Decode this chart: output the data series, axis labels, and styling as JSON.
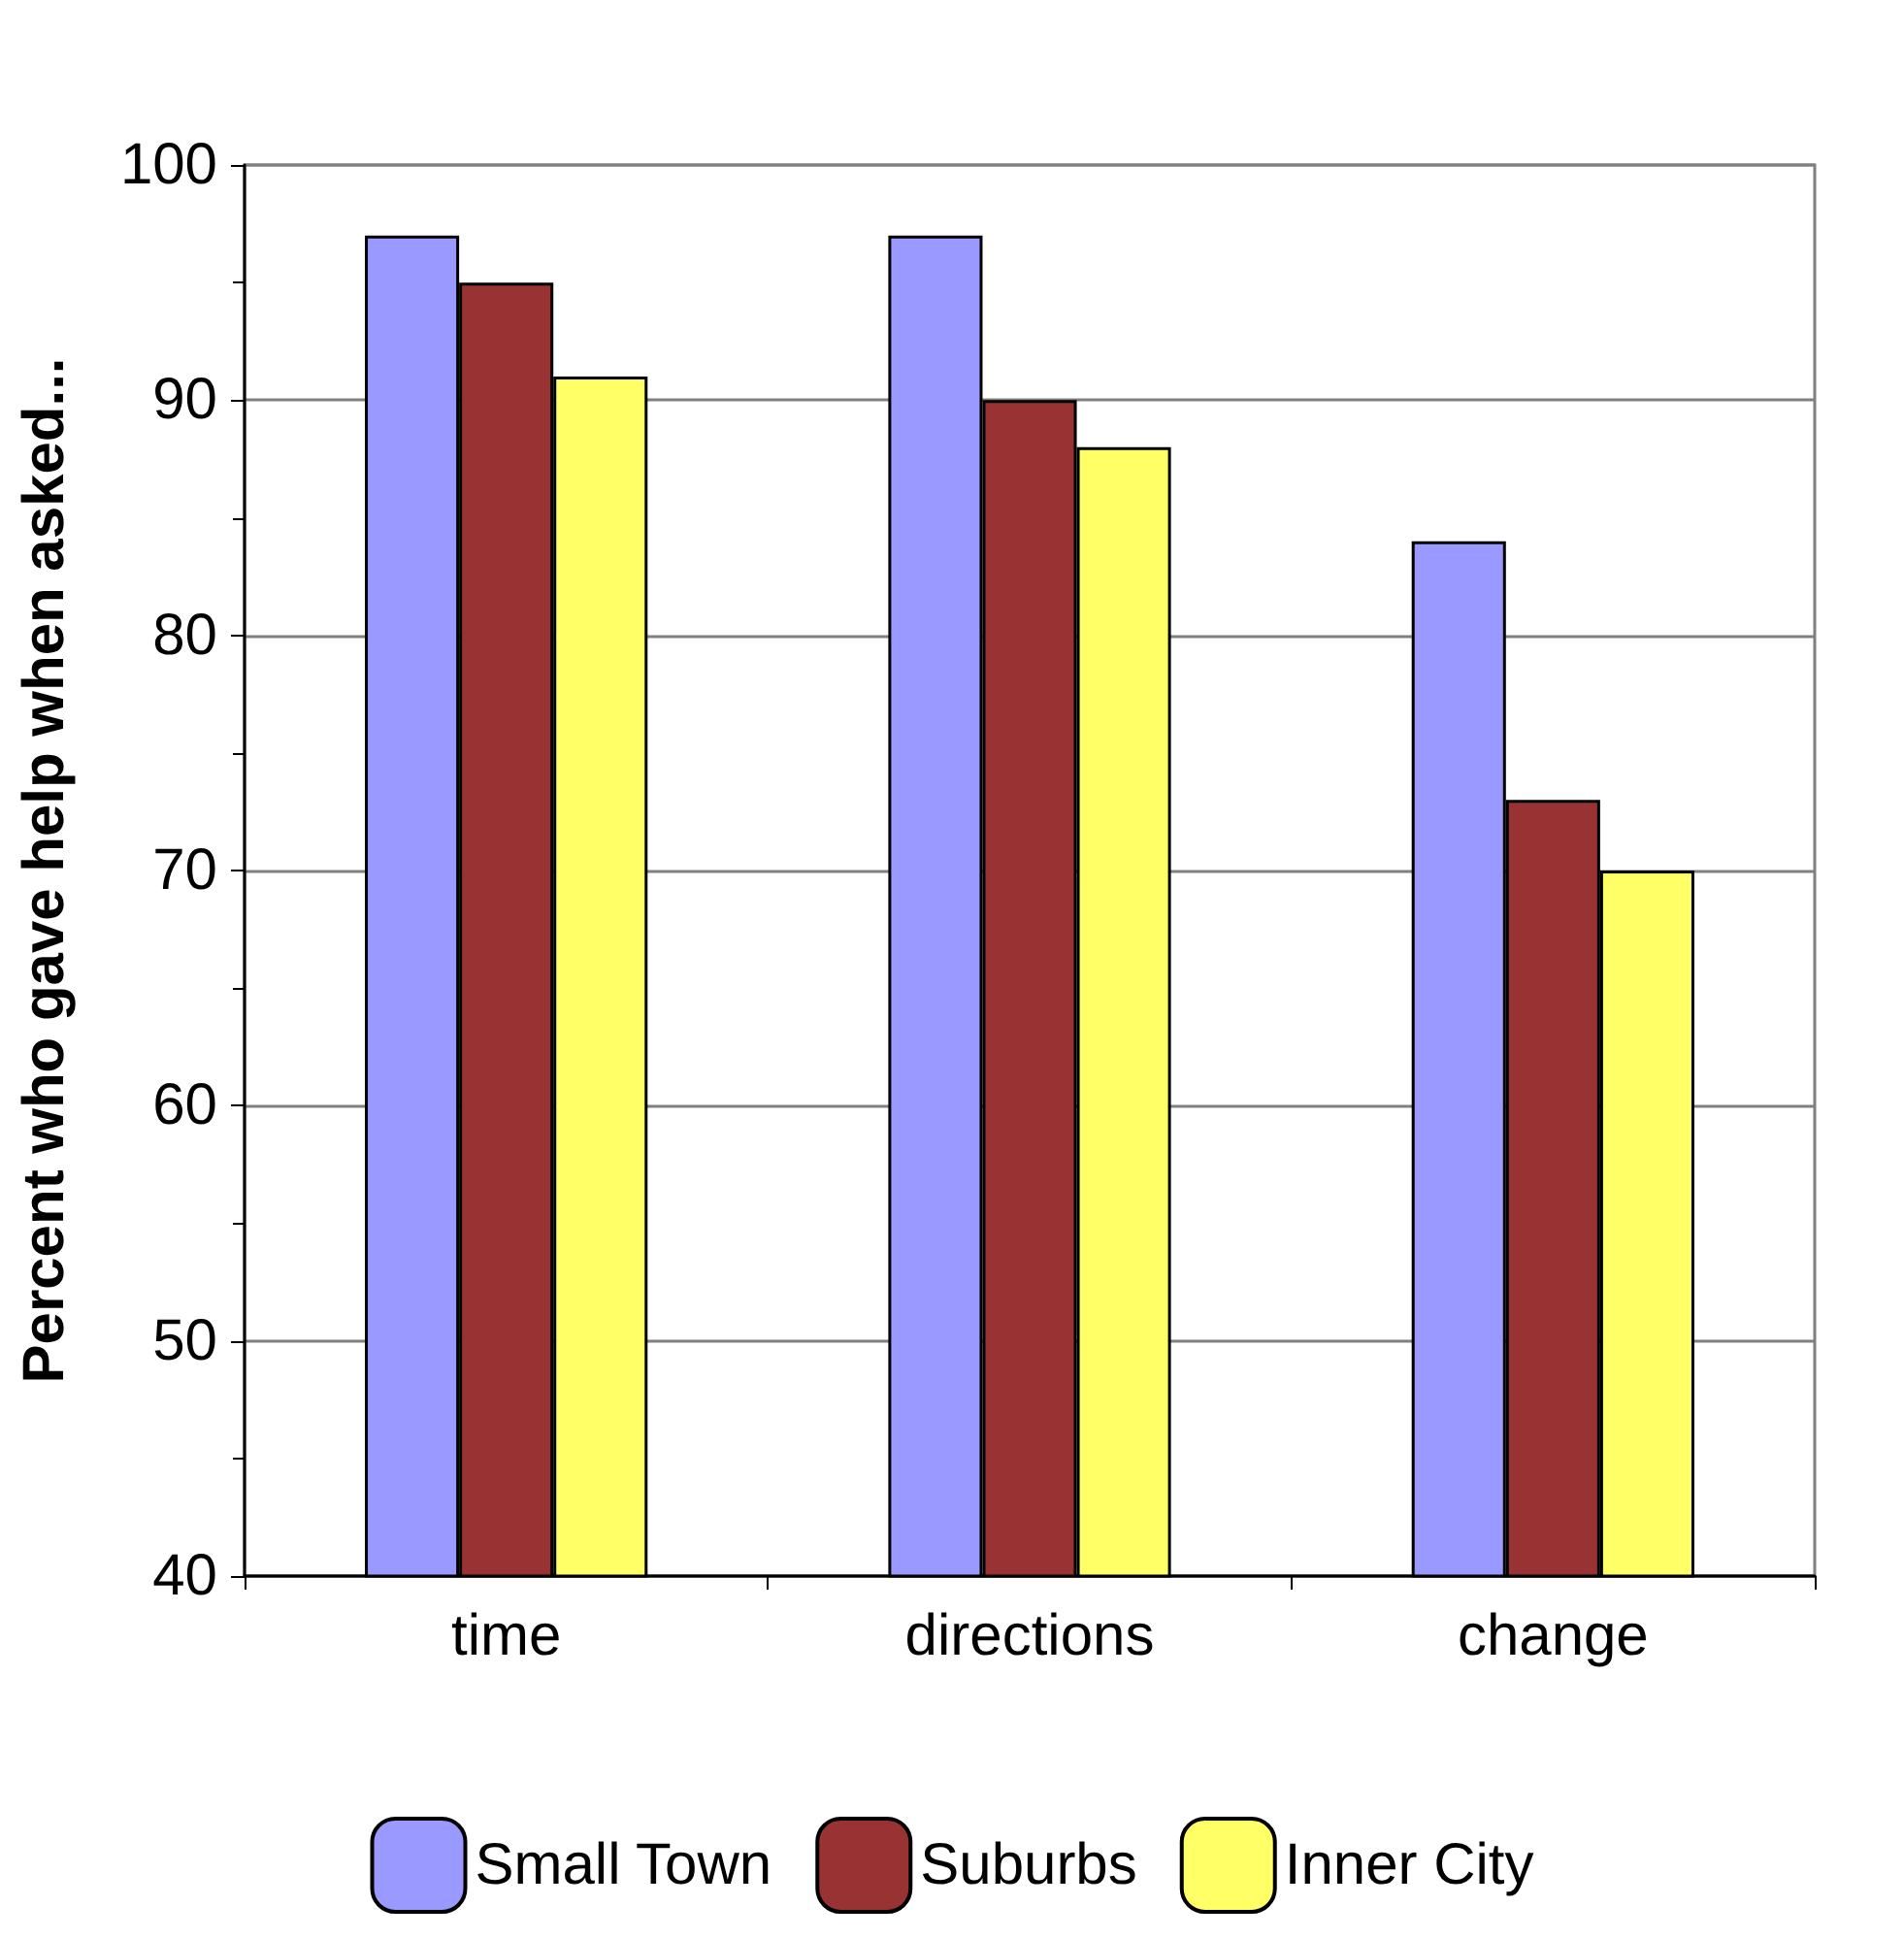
{
  "chart_data": {
    "type": "bar",
    "ylabel": "Percent who gave help when asked...",
    "categories": [
      "time",
      "directions",
      "change"
    ],
    "series": [
      {
        "name": "Small Town",
        "color": "#9999ff",
        "values": [
          97,
          97,
          84
        ]
      },
      {
        "name": "Suburbs",
        "color": "#993333",
        "values": [
          95,
          90,
          73
        ]
      },
      {
        "name": "Inner City",
        "color": "#ffff66",
        "values": [
          91,
          88,
          70
        ]
      }
    ],
    "ylim": [
      40,
      100
    ],
    "yticks": [
      40,
      50,
      60,
      70,
      80,
      90,
      100
    ],
    "grid": "y",
    "legend": "bottom"
  }
}
